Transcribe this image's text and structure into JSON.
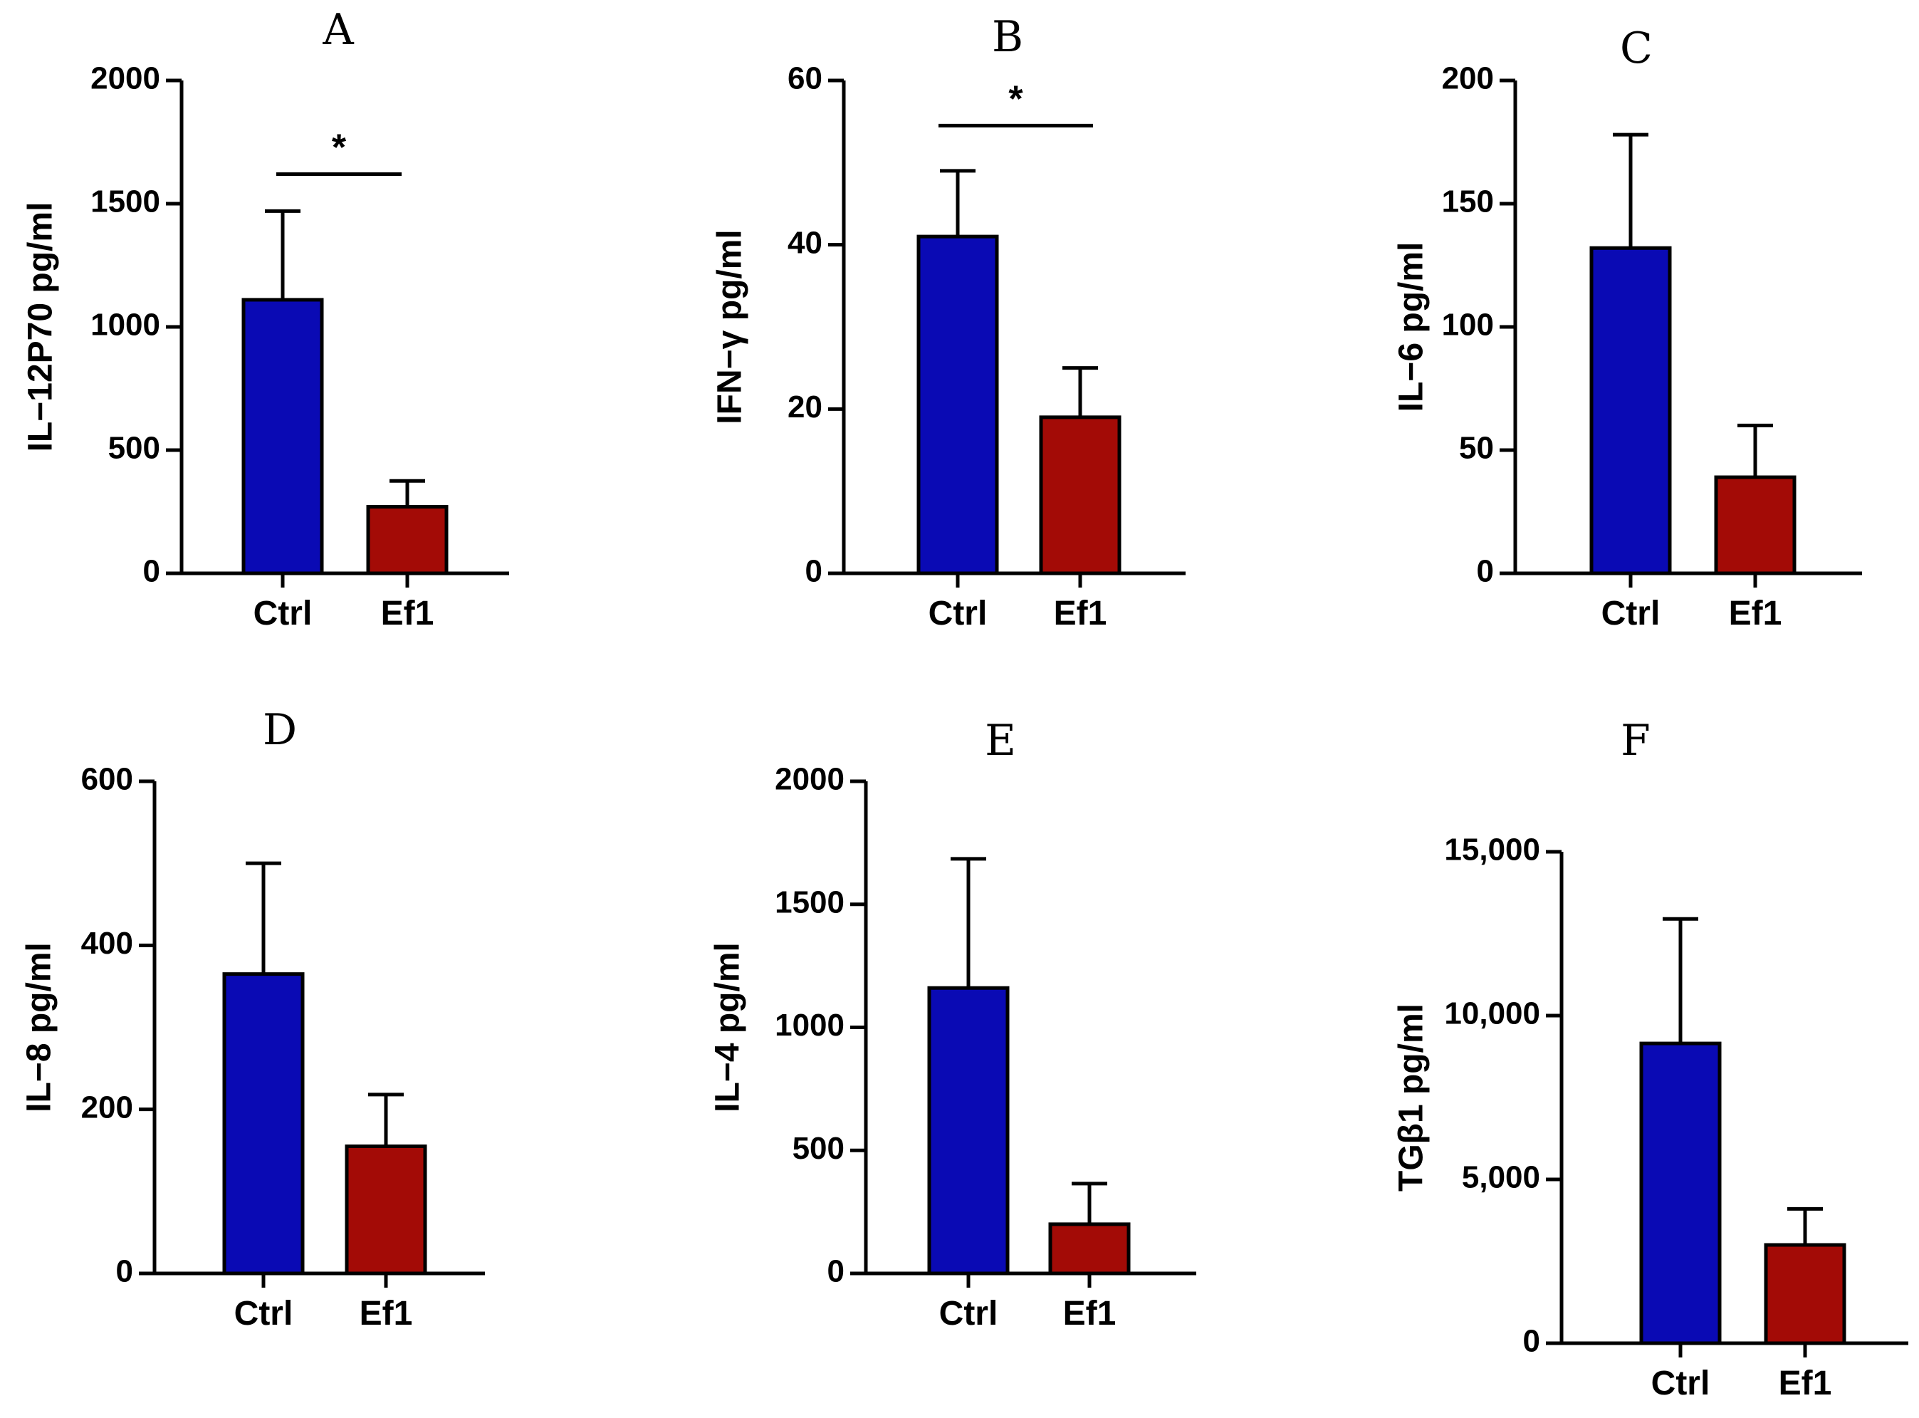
{
  "colors": {
    "ctrl": "#0a0ab4",
    "ef1": "#a30b06",
    "axis": "#000000"
  },
  "chart_data": [
    {
      "type": "bar",
      "title": "A",
      "ylabel": "IL−12P70 pg/ml",
      "categories": [
        "Ctrl",
        "Ef1"
      ],
      "values": [
        1110,
        270
      ],
      "errors": [
        360,
        105
      ],
      "ylim": [
        0,
        2000
      ],
      "yticks": [
        "0",
        "500",
        "1000",
        "1500",
        "2000"
      ],
      "ytick_values": [
        0,
        500,
        1000,
        1500,
        2000
      ],
      "significance": {
        "label": "*",
        "y": 1620
      },
      "grid": false
    },
    {
      "type": "bar",
      "title": "B",
      "ylabel": "IFN−γ pg/ml",
      "categories": [
        "Ctrl",
        "Ef1"
      ],
      "values": [
        41,
        19
      ],
      "errors": [
        8,
        6
      ],
      "ylim": [
        0,
        60
      ],
      "yticks": [
        "0",
        "20",
        "40",
        "60"
      ],
      "ytick_values": [
        0,
        20,
        40,
        60
      ],
      "significance": {
        "label": "*",
        "y": 54.5
      },
      "grid": false
    },
    {
      "type": "bar",
      "title": "C",
      "ylabel": "IL−6 pg/ml",
      "categories": [
        "Ctrl",
        "Ef1"
      ],
      "values": [
        132,
        39
      ],
      "errors": [
        46,
        21
      ],
      "ylim": [
        0,
        200
      ],
      "yticks": [
        "0",
        "50",
        "100",
        "150",
        "200"
      ],
      "ytick_values": [
        0,
        50,
        100,
        150,
        200
      ],
      "grid": false
    },
    {
      "type": "bar",
      "title": "D",
      "ylabel": "IL−8 pg/ml",
      "categories": [
        "Ctrl",
        "Ef1"
      ],
      "values": [
        365,
        155
      ],
      "errors": [
        135,
        63
      ],
      "ylim": [
        0,
        600
      ],
      "yticks": [
        "0",
        "200",
        "400",
        "600"
      ],
      "ytick_values": [
        0,
        200,
        400,
        600
      ],
      "grid": false
    },
    {
      "type": "bar",
      "title": "E",
      "ylabel": "IL−4 pg/ml",
      "categories": [
        "Ctrl",
        "Ef1"
      ],
      "values": [
        1160,
        200
      ],
      "errors": [
        525,
        165
      ],
      "ylim": [
        0,
        2000
      ],
      "yticks": [
        "0",
        "500",
        "1000",
        "1500",
        "2000"
      ],
      "ytick_values": [
        0,
        500,
        1000,
        1500,
        2000
      ],
      "grid": false
    },
    {
      "type": "bar",
      "title": "F",
      "ylabel": "TGβ1 pg/ml",
      "categories": [
        "Ctrl",
        "Ef1"
      ],
      "values": [
        9150,
        3000
      ],
      "errors": [
        3800,
        1100
      ],
      "ylim": [
        0,
        15000
      ],
      "yticks": [
        "0",
        "5,000",
        "10,000",
        "15,000"
      ],
      "ytick_values": [
        0,
        5000,
        10000,
        15000
      ],
      "grid": false
    }
  ]
}
